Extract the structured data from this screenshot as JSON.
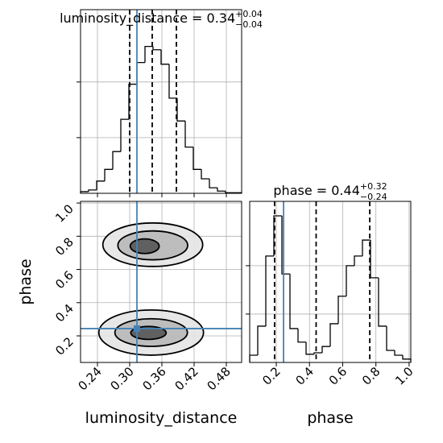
{
  "chart_data": [
    {
      "type": "histogram",
      "title": "luminosity_distance = 0.34",
      "title_sup": "+0.04",
      "title_sub": "−0.04",
      "bins": [
        0.2085,
        0.2235,
        0.2385,
        0.2535,
        0.2685,
        0.2835,
        0.2985,
        0.3135,
        0.3285,
        0.3435,
        0.3585,
        0.3735,
        0.3885,
        0.4035,
        0.4185,
        0.4335,
        0.4485,
        0.4635,
        0.4785,
        0.4935,
        0.5085
      ],
      "values": [
        3,
        6,
        22,
        43,
        75,
        133,
        196,
        235,
        264,
        258,
        232,
        171,
        130,
        83,
        43,
        26,
        10,
        4,
        1,
        1
      ],
      "xlim": [
        0.2085,
        0.5085
      ],
      "ylim": [
        0,
        330
      ],
      "yticks": [
        100,
        200
      ],
      "quantiles": [
        0.3,
        0.342,
        0.387
      ],
      "truth": 0.3135,
      "color": "#000000",
      "truth_color": "#4682b4",
      "grid": true
    },
    {
      "type": "contour",
      "x_label": "luminosity_distance",
      "y_label": "phase",
      "xlim": [
        0.2085,
        0.5085
      ],
      "ylim": [
        0.04,
        1.01
      ],
      "xticks": [
        0.24,
        {
          "value": 0.3,
          "label": "0.30"
        },
        0.36,
        0.42,
        0.48
      ],
      "yticks": [
        0.2,
        0.4,
        0.6,
        0.8,
        {
          "value": 1.0,
          "label": "1.0"
        }
      ],
      "truth": [
        0.3135,
        0.244
      ],
      "truth_color": "#4682b4",
      "grid": true,
      "levels": [
        {
          "x": 0.343,
          "y": 0.749,
          "rx": 0.093,
          "ry": 0.131
        },
        {
          "x": 0.343,
          "y": 0.745,
          "rx": 0.065,
          "ry": 0.087
        },
        {
          "x": 0.328,
          "y": 0.74,
          "rx": 0.027,
          "ry": 0.044
        },
        {
          "x": 0.34,
          "y": 0.22,
          "rx": 0.0975,
          "ry": 0.136
        },
        {
          "x": 0.34,
          "y": 0.22,
          "rx": 0.0675,
          "ry": 0.083
        },
        {
          "x": 0.335,
          "y": 0.218,
          "rx": 0.033,
          "ry": 0.039
        }
      ]
    },
    {
      "type": "histogram",
      "title": "phase = 0.44",
      "title_sup": "+0.32",
      "title_sub": "−0.24",
      "x_label": "phase",
      "bins": [
        0.04,
        0.0885,
        0.137,
        0.1855,
        0.234,
        0.2825,
        0.331,
        0.3795,
        0.428,
        0.4765,
        0.525,
        0.5735,
        0.622,
        0.6705,
        0.719,
        0.7675,
        0.816,
        0.8645,
        0.913,
        0.9615,
        1.01
      ],
      "values": [
        15,
        75,
        220,
        303,
        183,
        70,
        42,
        17,
        20,
        33,
        80,
        137,
        200,
        220,
        253,
        175,
        75,
        25,
        15,
        7
      ],
      "xlim": [
        0.04,
        1.01
      ],
      "ylim": [
        0,
        333
      ],
      "yticks": [
        100,
        200
      ],
      "xticks": [
        0.2,
        0.4,
        0.6,
        0.8,
        {
          "value": 1.0,
          "label": "1.0"
        }
      ],
      "quantiles": [
        0.19,
        0.44,
        0.763
      ],
      "truth": 0.244,
      "color": "#000000",
      "truth_color": "#4682b4",
      "grid": true
    }
  ]
}
